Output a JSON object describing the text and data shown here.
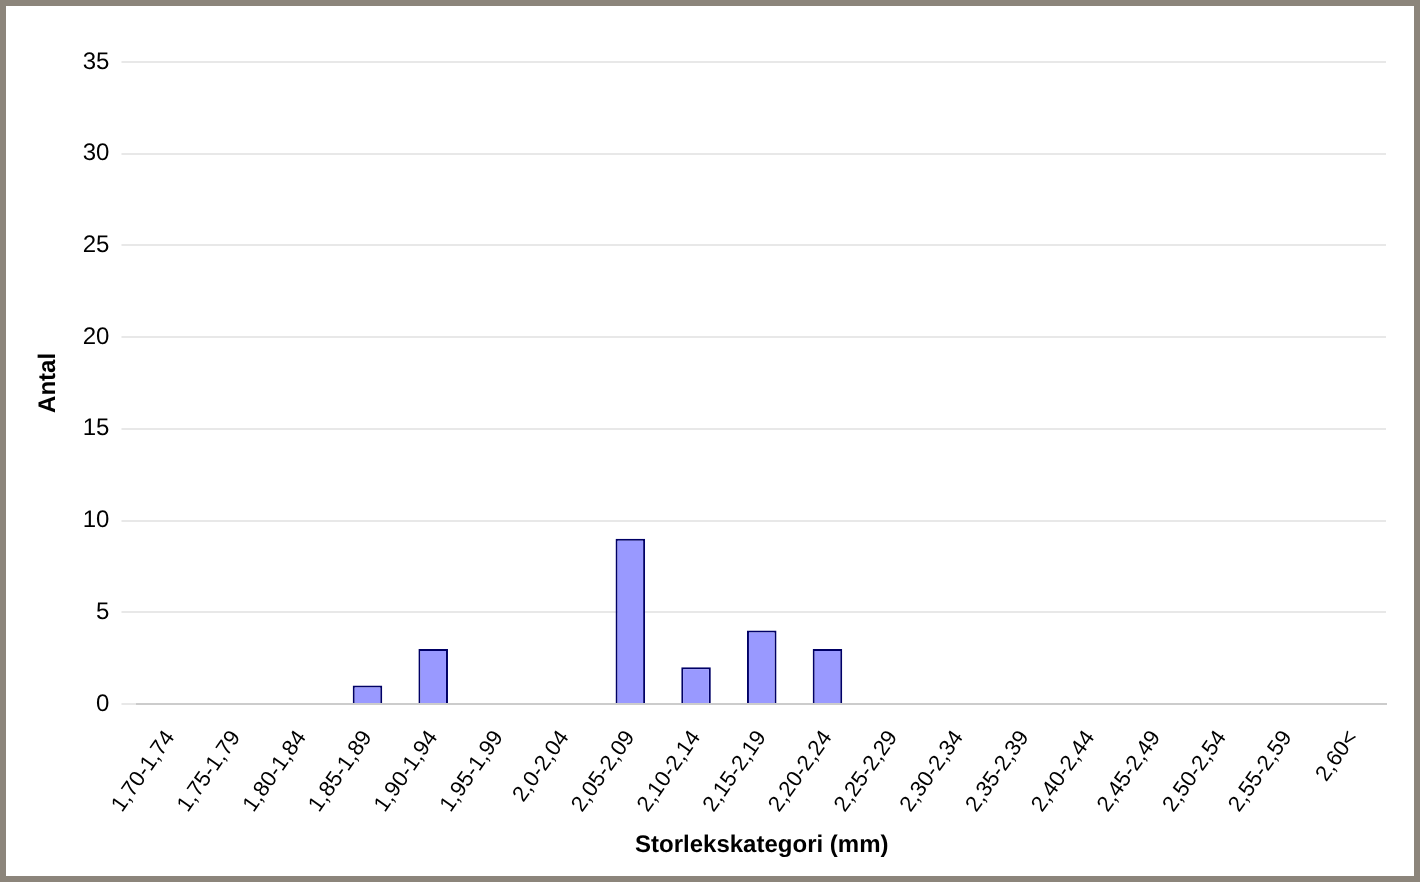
{
  "chart_data": {
    "type": "bar",
    "xlabel": "Storlekskategori (mm)",
    "ylabel": "Antal",
    "categories": [
      "1,70-1,74",
      "1,75-1,79",
      "1,80-1,84",
      "1,85-1,89",
      "1,90-1,94",
      "1,95-1,99",
      "2,0-2,04",
      "2,05-2,09",
      "2,10-2,14",
      "2,15-2,19",
      "2,20-2,24",
      "2,25-2,29",
      "2,30-2,34",
      "2,35-2,39",
      "2,40-2,44",
      "2,45-2,49",
      "2,50-2,54",
      "2,55-2,59",
      "2,60<"
    ],
    "values": [
      0,
      0,
      0,
      1,
      3,
      0,
      0,
      9,
      2,
      4,
      3,
      0,
      0,
      0,
      0,
      0,
      0,
      0,
      0
    ],
    "color": "#9999ff",
    "ylim": [
      0,
      35
    ],
    "yticks": [
      0,
      5,
      10,
      15,
      20,
      25,
      30,
      35
    ],
    "grid": "y",
    "legend": false
  }
}
